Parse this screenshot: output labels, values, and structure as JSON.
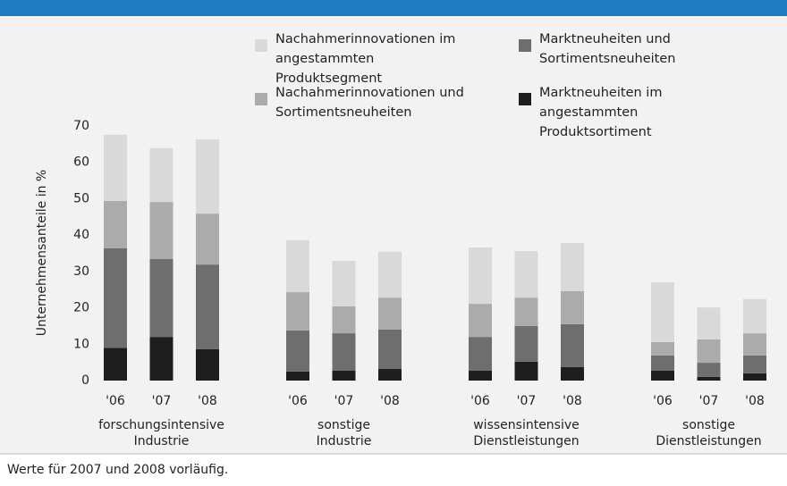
{
  "chart_data": {
    "type": "stacked_bar",
    "ylabel": "Unternehmensanteile in %",
    "note": "Werte für 2007 und 2008 vorläufig.",
    "categories": [
      "'06",
      "'07",
      "'08",
      "'06",
      "'07",
      "'08",
      "'06",
      "'07",
      "'08",
      "'06",
      "'07",
      "'08"
    ],
    "groups": [
      [
        "forschungsintensive",
        "Industrie"
      ],
      [
        "sonstige",
        "Industrie"
      ],
      [
        "wissensintensive",
        "Dienstleistungen"
      ],
      [
        "sonstige",
        "Dienstleistungen"
      ]
    ],
    "ylim": [
      0,
      70
    ],
    "yticks": [
      0,
      10,
      20,
      30,
      40,
      50,
      60,
      70
    ],
    "grid": false,
    "series": [
      {
        "name": "Marktneuheiten im angestammten Produktsortiment",
        "color": "#1e1e1e",
        "values": [
          9,
          12,
          8.6,
          2.5,
          2.7,
          3.2,
          2.7,
          5.2,
          3.7,
          2.7,
          1,
          2
        ]
      },
      {
        "name": "Marktneuheiten und Sortimentsneuheiten",
        "color": "#6e6e6e",
        "values": [
          27.4,
          21.4,
          23.3,
          11.3,
          10.3,
          10.8,
          9.3,
          9.8,
          11.8,
          4.2,
          3.9,
          4.9
        ]
      },
      {
        "name": "Nachahmerinnovationen und Sortimentsneuheiten",
        "color": "#ababab",
        "values": [
          13,
          15.7,
          14,
          10.5,
          7.4,
          8.8,
          9.1,
          7.8,
          9.1,
          3.7,
          6.4,
          6.1
        ]
      },
      {
        "name": "Nachahmerinnovationen im angestammten Produktsegment",
        "color": "#d9d9d9",
        "values": [
          18.2,
          14.8,
          20.4,
          14.3,
          12.5,
          12.6,
          15.5,
          12.8,
          13.2,
          16.4,
          8.8,
          9.4
        ]
      }
    ]
  }
}
